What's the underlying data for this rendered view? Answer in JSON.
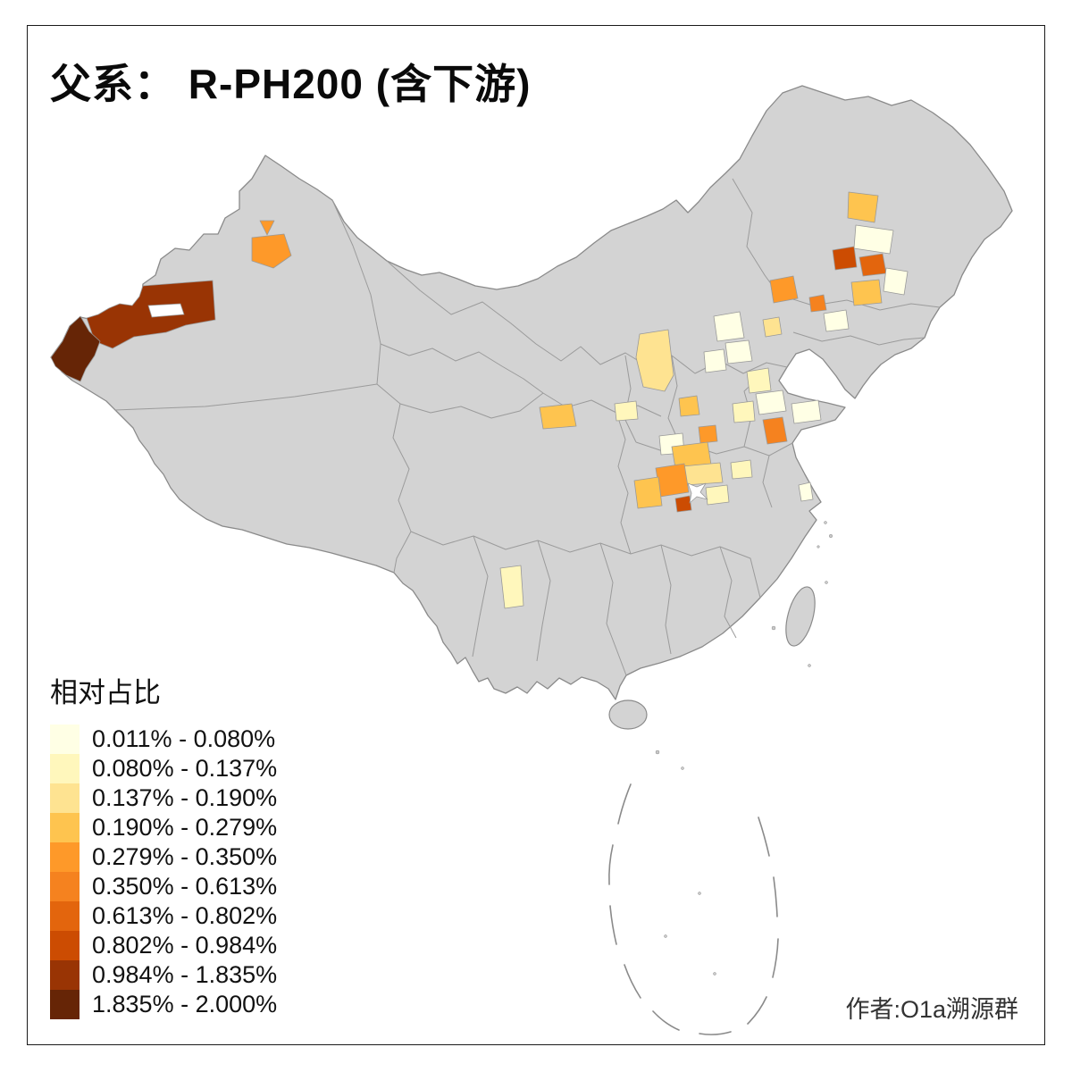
{
  "title": "父系： R-PH200 (含下游)",
  "legend": {
    "title": "相对占比",
    "items": [
      {
        "label": "0.011% - 0.080%",
        "color": "#FFFFE5"
      },
      {
        "label": "0.080% - 0.137%",
        "color": "#FFF7BC"
      },
      {
        "label": "0.137% - 0.190%",
        "color": "#FEE391"
      },
      {
        "label": "0.190% - 0.279%",
        "color": "#FEC44F"
      },
      {
        "label": "0.279% - 0.350%",
        "color": "#FE9929"
      },
      {
        "label": "0.350% - 0.613%",
        "color": "#F5821F"
      },
      {
        "label": "0.613% - 0.802%",
        "color": "#E3650D"
      },
      {
        "label": "0.802% - 0.984%",
        "color": "#CC4C02"
      },
      {
        "label": "0.984% - 1.835%",
        "color": "#993404"
      },
      {
        "label": "1.835% - 2.000%",
        "color": "#662506"
      }
    ]
  },
  "credit": "作者:O1a溯源群",
  "map": {
    "land_color": "#d3d3d3",
    "boundary_color": "#8a8a8a",
    "no_data_enclave_color": "#ffffff",
    "regions": [
      {
        "id": "kashgar-main",
        "class": 9
      },
      {
        "id": "kashgar-tip",
        "class": 10
      },
      {
        "id": "xjn-patch",
        "class": 5
      },
      {
        "id": "xjn-marker",
        "class": 5
      },
      {
        "id": "ne-orange-n",
        "class": 4
      },
      {
        "id": "ne-pale-n",
        "class": 1
      },
      {
        "id": "ne-red-w",
        "class": 8
      },
      {
        "id": "ne-red-e",
        "class": 7
      },
      {
        "id": "ne-pale-e",
        "class": 1
      },
      {
        "id": "ne-orange-w",
        "class": 5
      },
      {
        "id": "ne-orange-s",
        "class": 6
      },
      {
        "id": "ne-orange-c",
        "class": 4
      },
      {
        "id": "ne-pale-s",
        "class": 1
      },
      {
        "id": "shanxi-patch",
        "class": 3
      },
      {
        "id": "hebei-pale-1",
        "class": 1
      },
      {
        "id": "hebei-pale-2",
        "class": 1
      },
      {
        "id": "hebei-pale-3",
        "class": 1
      },
      {
        "id": "bohai-pale",
        "class": 2
      },
      {
        "id": "beijing-yellow",
        "class": 3
      },
      {
        "id": "xian-patch",
        "class": 4
      },
      {
        "id": "mid-pale",
        "class": 2
      },
      {
        "id": "zhengzhou-patch",
        "class": 4
      },
      {
        "id": "henan-orange",
        "class": 5
      },
      {
        "id": "henan-pale",
        "class": 1
      },
      {
        "id": "anhui-pale",
        "class": 2
      },
      {
        "id": "shandong-pale-w",
        "class": 1
      },
      {
        "id": "shandong-pale-e",
        "class": 1
      },
      {
        "id": "jiangsu-orange",
        "class": 6
      },
      {
        "id": "central-orange",
        "class": 4
      },
      {
        "id": "central-yellow",
        "class": 3
      },
      {
        "id": "chongqing-orange",
        "class": 5
      },
      {
        "id": "cq-yellow",
        "class": 4
      },
      {
        "id": "hubei-darkred",
        "class": 8
      },
      {
        "id": "hubei-pale-e",
        "class": 2
      },
      {
        "id": "sichuan-pale",
        "class": 2
      },
      {
        "id": "yunnan-pale",
        "class": 2
      },
      {
        "id": "shanghai-pale",
        "class": 1
      }
    ]
  }
}
